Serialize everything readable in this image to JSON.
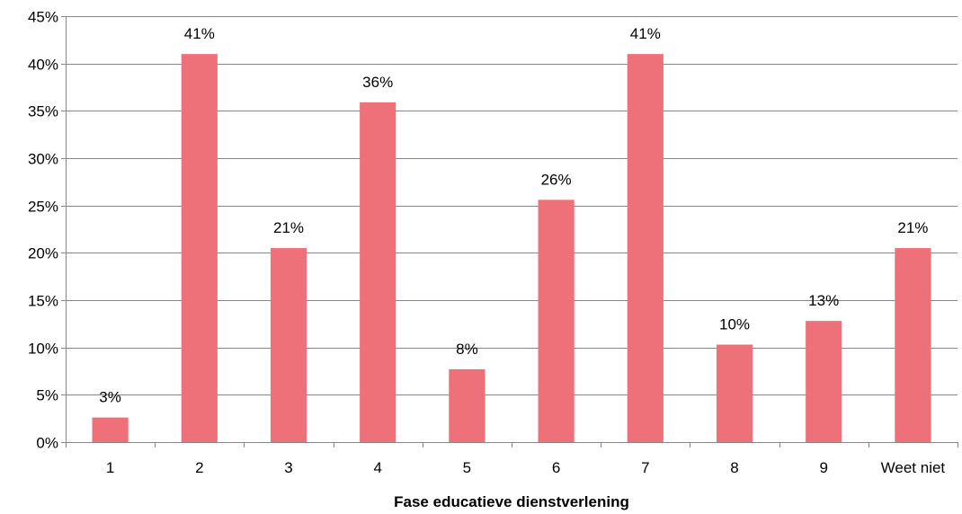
{
  "chart_data": {
    "type": "bar",
    "categories": [
      "1",
      "2",
      "3",
      "4",
      "5",
      "6",
      "7",
      "8",
      "9",
      "Weet niet"
    ],
    "values": [
      2.6,
      41,
      20.5,
      35.9,
      7.7,
      25.6,
      41,
      10.3,
      12.8,
      20.5
    ],
    "data_labels": [
      "3%",
      "41%",
      "21%",
      "36%",
      "8%",
      "26%",
      "41%",
      "10%",
      "13%",
      "21%"
    ],
    "title": "",
    "xlabel": "Fase educatieve dienstverlening",
    "ylabel": "",
    "ylim": [
      0,
      45
    ],
    "yticks": [
      0,
      5,
      10,
      15,
      20,
      25,
      30,
      35,
      40,
      45
    ],
    "ytick_labels": [
      "0%",
      "5%",
      "10%",
      "15%",
      "20%",
      "25%",
      "30%",
      "35%",
      "40%",
      "45%"
    ],
    "grid": true,
    "legend": "none",
    "bar_color": "#ee7079",
    "gridline_color": "#868686",
    "axis_color": "#868686"
  }
}
